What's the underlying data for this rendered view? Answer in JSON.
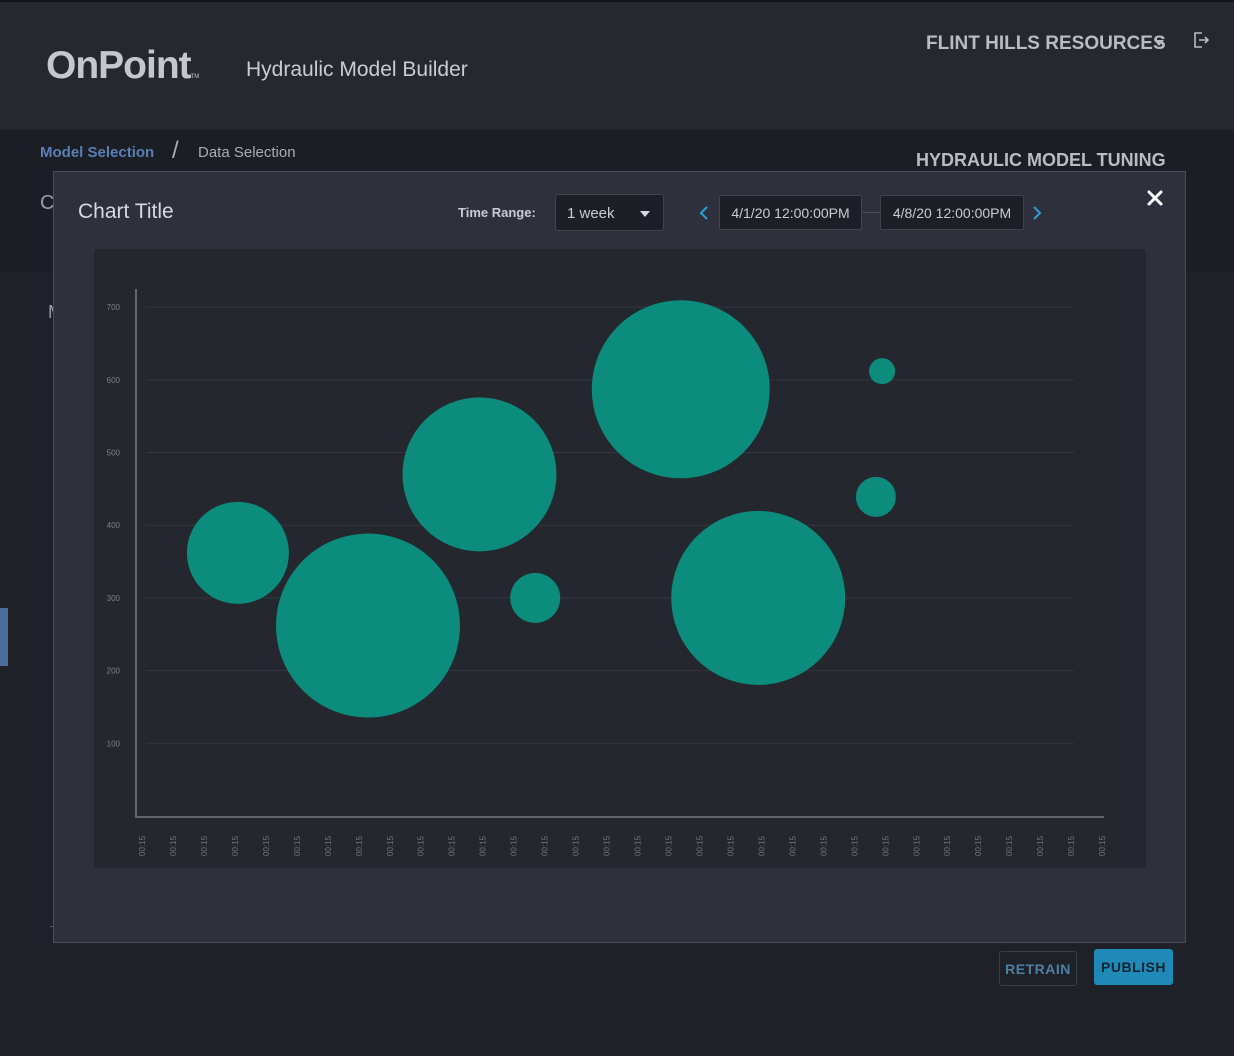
{
  "header": {
    "logo_text": "OnPoint",
    "logo_tm": "TM",
    "app_title": "Hydraulic Model Builder",
    "company": "FLINT HILLS RESOURCES",
    "icons": {
      "company_menu": "chevron-down-icon",
      "logout": "logout-icon"
    }
  },
  "breadcrumb": {
    "model_selection": "Model Selection",
    "separator": "/",
    "data_selection": "Data Selection"
  },
  "page": {
    "section_title": "HYDRAULIC MODEL TUNING",
    "obscured_letter_1": "C",
    "obscured_letter_2": "M"
  },
  "actions": {
    "retrain": "RETRAIN",
    "publish": "PUBLISH"
  },
  "modal": {
    "title": "Chart Title",
    "time_range_label": "Time Range:",
    "time_range_value": "1 week",
    "start_date": "4/1/20 12:00:00PM",
    "end_date": "4/8/20 12:00:00PM",
    "icons": {
      "close": "close-icon",
      "prev": "chevron-left-icon",
      "next": "chevron-right-icon",
      "select": "caret-down-icon"
    }
  },
  "colors": {
    "accent": "#5a7fb6",
    "bubble": "#0b8c7c",
    "publish": "#1f8ab8",
    "nav_arrow": "#2a9fd6"
  },
  "chart_data": {
    "type": "scatter",
    "title": "",
    "xlabel": "",
    "ylabel": "",
    "x_tick_labels": [
      "00:15",
      "00:15",
      "00:15",
      "00:15",
      "00:15",
      "00:15",
      "00:15",
      "00:15",
      "00:15",
      "00:15",
      "00:15",
      "00:15",
      "00:15",
      "00:15",
      "00:15",
      "00:15",
      "00:15",
      "00:15",
      "00:15",
      "00:15",
      "00:15",
      "00:15",
      "00:15",
      "00:15",
      "00:15",
      "00:15",
      "00:15",
      "00:15",
      "00:15",
      "00:15",
      "00:15",
      "00:15"
    ],
    "y_ticks": [
      100,
      200,
      300,
      400,
      500,
      600,
      700
    ],
    "ylim": [
      0,
      725
    ],
    "grid": true,
    "series": [
      {
        "points": [
          {
            "x": 3,
            "y": 362,
            "size": 51
          },
          {
            "x": 7.2,
            "y": 262,
            "size": 92
          },
          {
            "x": 10.8,
            "y": 470,
            "size": 77
          },
          {
            "x": 12.6,
            "y": 300,
            "size": 25
          },
          {
            "x": 17.3,
            "y": 587,
            "size": 89
          },
          {
            "x": 19.8,
            "y": 300,
            "size": 87
          },
          {
            "x": 23.8,
            "y": 612,
            "size": 13
          },
          {
            "x": 23.6,
            "y": 439,
            "size": 20
          }
        ]
      }
    ]
  }
}
